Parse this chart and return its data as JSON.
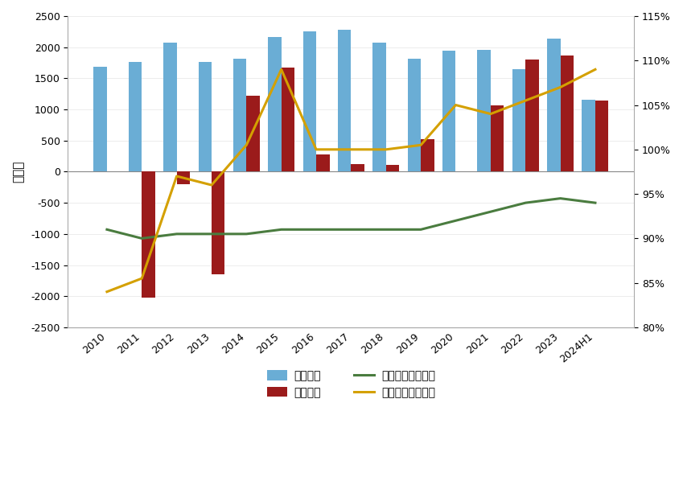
{
  "years": [
    "2010",
    "2011",
    "2012",
    "2013",
    "2014",
    "2015",
    "2016",
    "2017",
    "2018",
    "2019",
    "2020",
    "2021",
    "2022",
    "2023",
    "2024H1"
  ],
  "export_under": [
    1680,
    1760,
    2070,
    1760,
    1820,
    2170,
    2250,
    2280,
    2080,
    1820,
    1950,
    1960,
    1650,
    2140,
    1160
  ],
  "import_over": [
    0,
    -2020,
    -200,
    -1650,
    1220,
    1670,
    280,
    120,
    110,
    520,
    0,
    1060,
    1800,
    1870,
    1140
  ],
  "export_receipt_rate_pct": [
    91.0,
    90.0,
    90.5,
    90.5,
    90.5,
    91.0,
    91.0,
    91.0,
    91.0,
    91.0,
    92.0,
    93.0,
    94.0,
    94.5,
    94.0
  ],
  "import_payment_rate_pct": [
    84.0,
    85.5,
    97.0,
    96.0,
    100.5,
    109.0,
    100.0,
    100.0,
    100.0,
    100.5,
    105.0,
    104.0,
    105.5,
    107.0,
    109.0
  ],
  "bar_color_blue": "#6aadd5",
  "bar_color_red": "#9b1b1b",
  "line_color_green": "#4a7c3f",
  "line_color_yellow": "#d4a000",
  "ylabel_left": "亿美元",
  "ylim_left": [
    -2500,
    2500
  ],
  "ylim_right": [
    80,
    115
  ],
  "yticks_left": [
    -2500,
    -2000,
    -1500,
    -1000,
    -500,
    0,
    500,
    1000,
    1500,
    2000,
    2500
  ],
  "yticks_right": [
    80,
    85,
    90,
    95,
    100,
    105,
    110,
    115
  ],
  "legend_labels": [
    "出口少收",
    "进口多付",
    "出口收入率（右）",
    "进口支付率（右）"
  ],
  "background_color": "#ffffff",
  "bar_width": 0.38,
  "figsize": [
    8.49,
    5.93
  ],
  "dpi": 100
}
